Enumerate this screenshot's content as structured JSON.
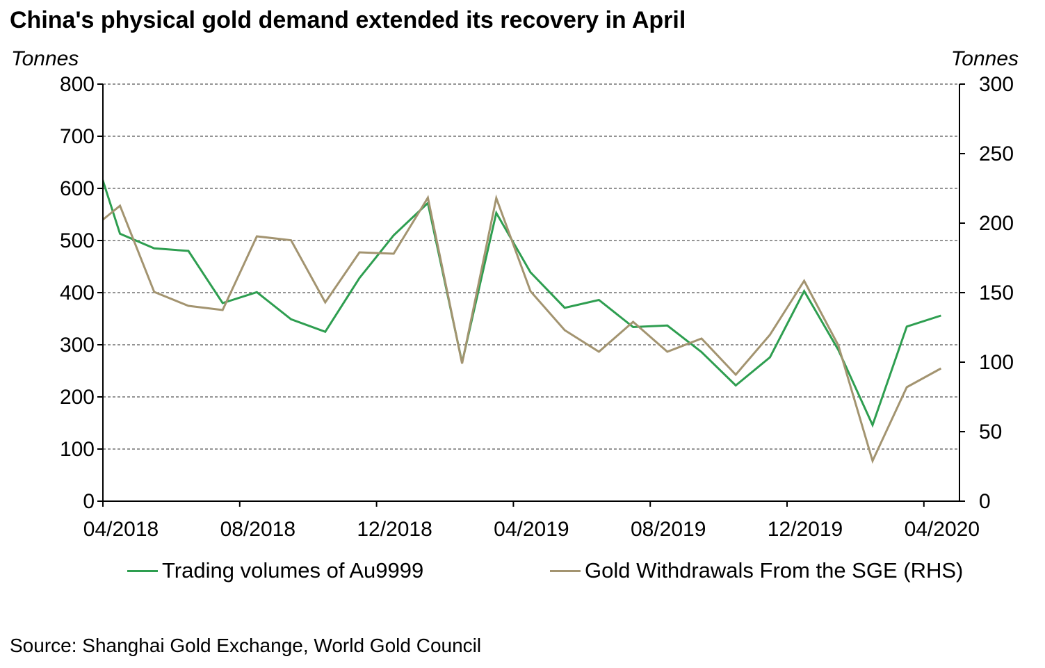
{
  "title": "China's physical gold demand extended its recovery in April",
  "source": "Source: Shanghai Gold Exchange, World Gold Council",
  "chart_data": {
    "type": "line",
    "title": "China's physical gold demand extended its recovery in April",
    "ylabel_left": "Tonnes",
    "ylabel_right": "Tonnes",
    "ylim_left": [
      0,
      800
    ],
    "yticks_left": [
      0,
      100,
      200,
      300,
      400,
      500,
      600,
      700,
      800
    ],
    "ylim_right": [
      0,
      300
    ],
    "yticks_right": [
      0,
      50,
      100,
      150,
      200,
      250,
      300
    ],
    "xtick_labels": [
      "04/2018",
      "08/2018",
      "12/2018",
      "04/2019",
      "08/2019",
      "12/2019",
      "04/2020"
    ],
    "x": [
      "03/2018",
      "04/2018",
      "05/2018",
      "06/2018",
      "07/2018",
      "08/2018",
      "09/2018",
      "10/2018",
      "11/2018",
      "12/2018",
      "01/2019",
      "02/2019",
      "03/2019",
      "04/2019",
      "05/2019",
      "06/2019",
      "07/2019",
      "08/2019",
      "09/2019",
      "10/2019",
      "11/2019",
      "12/2019",
      "01/2020",
      "02/2020",
      "03/2020",
      "04/2020"
    ],
    "grid": true,
    "legend_position": "bottom",
    "series": [
      {
        "name": "Trading volumes of Au9999",
        "axis": "left",
        "color": "#2e9e50",
        "values": [
          717,
          513,
          485,
          480,
          380,
          401,
          349,
          325,
          428,
          510,
          572,
          266,
          553,
          439,
          371,
          386,
          334,
          337,
          286,
          222,
          276,
          403,
          290,
          146,
          335,
          356
        ]
      },
      {
        "name": "Gold Withdrawals From the SGE (RHS)",
        "axis": "right",
        "color": "#a39470",
        "values": [
          192.5,
          212.5,
          150.5,
          140.5,
          137.5,
          190.5,
          187.7,
          143,
          179,
          178,
          218.3,
          99,
          218,
          151,
          123,
          107.5,
          129,
          107.5,
          117,
          91,
          119.7,
          158.5,
          112,
          29,
          82,
          95.5
        ]
      }
    ]
  }
}
